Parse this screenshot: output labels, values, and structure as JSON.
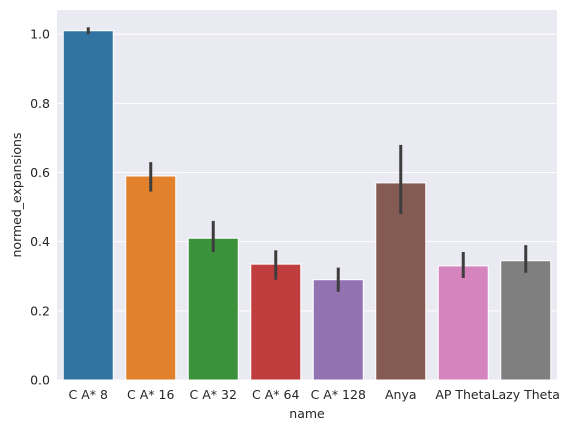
{
  "chart_data": {
    "type": "bar",
    "xlabel": "name",
    "ylabel": "normed_expansions",
    "ylim": [
      0,
      1.07
    ],
    "yticks": [
      0.0,
      0.2,
      0.4,
      0.6,
      0.8,
      1.0
    ],
    "ytick_labels": [
      "0.0",
      "0.2",
      "0.4",
      "0.6",
      "0.8",
      "1.0"
    ],
    "grid": true,
    "categories": [
      "C A* 8",
      "C A* 16",
      "C A* 32",
      "C A* 64",
      "C A* 128",
      "Anya",
      "AP Theta",
      "Lazy Theta"
    ],
    "values": [
      1.01,
      0.59,
      0.41,
      0.335,
      0.29,
      0.57,
      0.33,
      0.345
    ],
    "error_low": [
      1.0,
      0.545,
      0.37,
      0.29,
      0.255,
      0.48,
      0.295,
      0.31
    ],
    "error_high": [
      1.02,
      0.63,
      0.46,
      0.375,
      0.325,
      0.68,
      0.37,
      0.39
    ],
    "colors": [
      "#3274a1",
      "#e1812c",
      "#3a923a",
      "#c03d3e",
      "#9372b2",
      "#845b53",
      "#d684bd",
      "#7f7f7f"
    ]
  }
}
